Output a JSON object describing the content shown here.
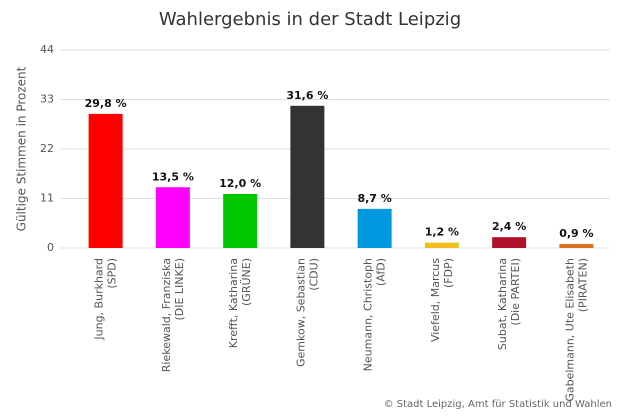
{
  "chart_data": {
    "type": "bar",
    "title": "Wahlergebnis in der Stadt Leipzig",
    "y_label": "Gültige Stimmen in Prozent",
    "credit": "© Stadt Leipzig, Amt für Statistik und Wahlen",
    "categories": [
      [
        "Jung, Burkhard",
        "(SPD)"
      ],
      [
        "Riekewald, Franziska",
        "(DIE LINKE)"
      ],
      [
        "Krefft, Katharina",
        "(GRÜNE)"
      ],
      [
        "Gemkow, Sebastian",
        "(CDU)"
      ],
      [
        "Neumann, Christoph",
        "(AfD)"
      ],
      [
        "Viefeld, Marcus",
        "(FDP)"
      ],
      [
        "Subat, Katharina",
        "(Die PARTEI)"
      ],
      [
        "Gabelmann, Ute Elisabeth",
        "(PIRATEN)"
      ]
    ],
    "values": [
      29.8,
      13.5,
      12.0,
      31.6,
      8.7,
      1.2,
      2.4,
      0.9
    ],
    "value_labels": [
      "29,8 %",
      "13,5 %",
      "12,0 %",
      "31,6 %",
      "8,7 %",
      "1,2 %",
      "2,4 %",
      "0,9 %"
    ],
    "colors": [
      "#ff0000",
      "#ff00ff",
      "#00c800",
      "#333333",
      "#0099e0",
      "#f0c020",
      "#b0102a",
      "#e07020"
    ],
    "ylim": [
      0,
      44
    ],
    "yticks": [
      0,
      11,
      22,
      33,
      44
    ],
    "grid": true
  }
}
